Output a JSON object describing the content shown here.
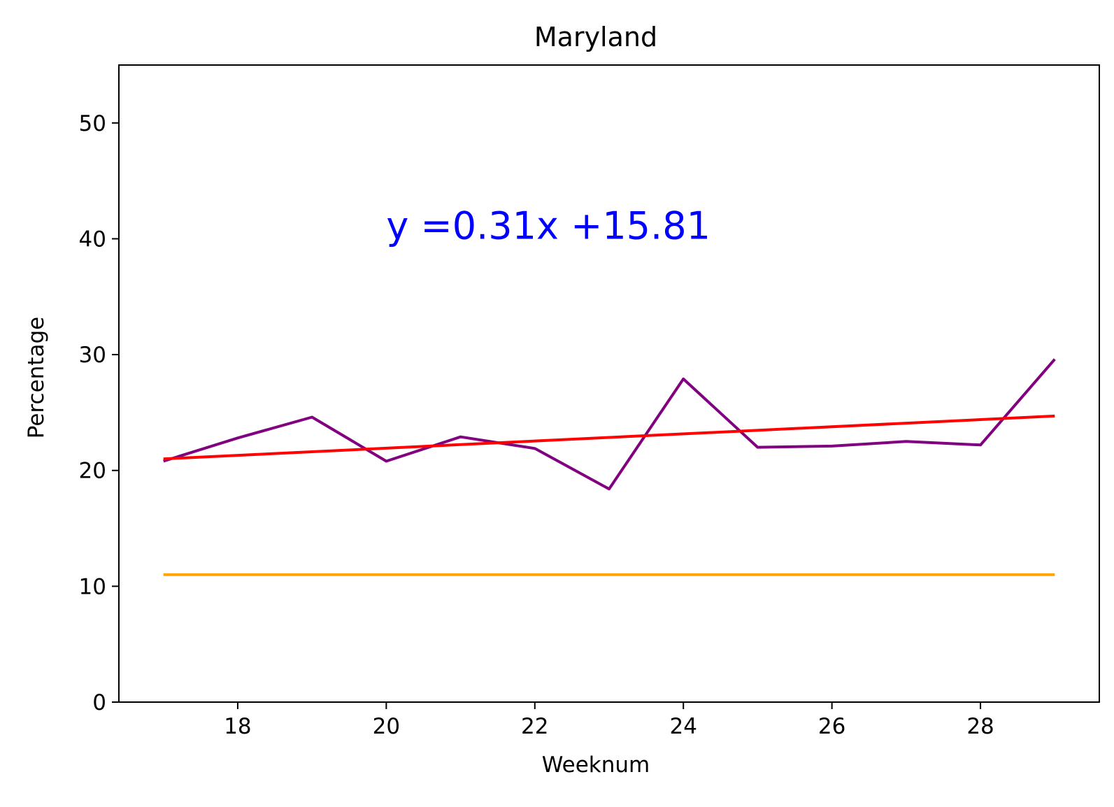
{
  "chart_data": {
    "type": "line",
    "title": "Maryland",
    "xlabel": "Weeknum",
    "ylabel": "Percentage",
    "xlim": [
      16.4,
      29.6
    ],
    "ylim": [
      0,
      55
    ],
    "xticks": [
      18,
      20,
      22,
      24,
      26,
      28
    ],
    "yticks": [
      0,
      10,
      20,
      30,
      40,
      50
    ],
    "grid": false,
    "annotation": {
      "text": "y =0.31x +15.81",
      "x": 20,
      "y": 40,
      "color": "#0000ff"
    },
    "series": [
      {
        "color": "#800080",
        "x": [
          17,
          18,
          19,
          20,
          21,
          22,
          23,
          24,
          25,
          26,
          27,
          28,
          29
        ],
        "y": [
          20.8,
          22.8,
          24.6,
          20.8,
          22.9,
          21.9,
          18.4,
          27.9,
          22.0,
          22.1,
          22.5,
          22.2,
          29.6
        ]
      },
      {
        "color": "#ff0000",
        "x": [
          17,
          29
        ],
        "y": [
          21.0,
          24.7
        ]
      },
      {
        "color": "#ffa500",
        "x": [
          17,
          29
        ],
        "y": [
          11,
          11
        ]
      }
    ]
  }
}
